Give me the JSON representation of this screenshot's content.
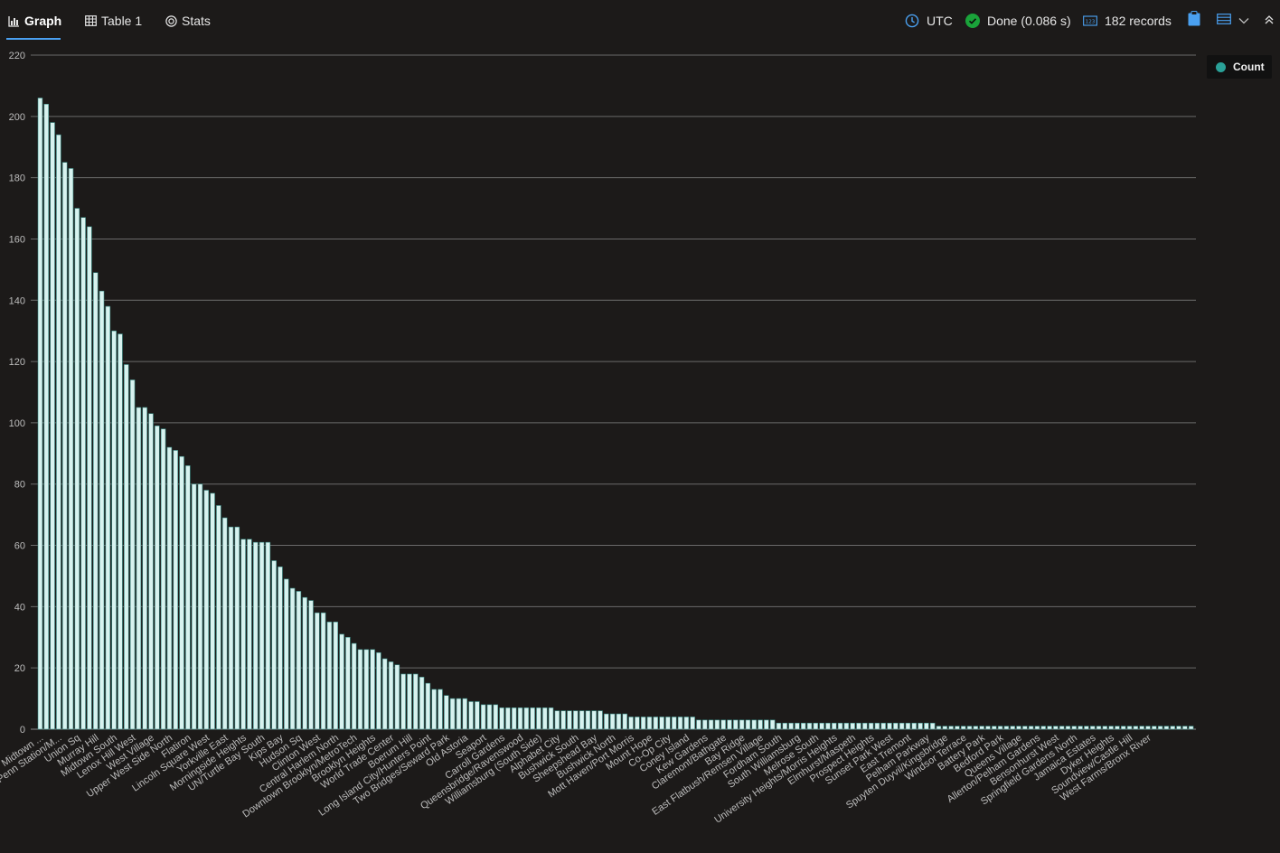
{
  "tabs": [
    {
      "label": "Graph",
      "icon": "bar-chart-icon",
      "active": true
    },
    {
      "label": "Table 1",
      "icon": "table-icon",
      "active": false
    },
    {
      "label": "Stats",
      "icon": "stats-icon",
      "active": false
    }
  ],
  "status": {
    "timezone": "UTC",
    "done": "Done (0.086 s)",
    "records": "182 records"
  },
  "colors": {
    "background": "#1c1a19",
    "bar_fill": "#d8f2ef",
    "bar_stroke": "#3a8c86",
    "legend_dot": "#2aa198",
    "accent": "#4aa0f0",
    "done_green": "#1aa33a"
  },
  "chart_data": {
    "type": "bar",
    "title": "",
    "xlabel": "",
    "ylabel": "",
    "ylim": [
      0,
      220
    ],
    "yticks": [
      0,
      20,
      40,
      60,
      80,
      100,
      120,
      140,
      160,
      180,
      200,
      220
    ],
    "grid": true,
    "legend_placement": "top-right",
    "series": [
      {
        "name": "Count"
      }
    ],
    "values": [
      206,
      204,
      198,
      194,
      185,
      183,
      170,
      167,
      164,
      149,
      143,
      138,
      130,
      129,
      119,
      114,
      105,
      105,
      103,
      99,
      98,
      92,
      91,
      89,
      86,
      80,
      80,
      78,
      77,
      73,
      69,
      66,
      66,
      62,
      62,
      61,
      61,
      61,
      55,
      53,
      49,
      46,
      45,
      43,
      42,
      38,
      38,
      35,
      35,
      31,
      30,
      28,
      26,
      26,
      26,
      25,
      23,
      22,
      21,
      18,
      18,
      18,
      17,
      15,
      13,
      13,
      11,
      10,
      10,
      10,
      9,
      9,
      8,
      8,
      8,
      7,
      7,
      7,
      7,
      7,
      7,
      7,
      7,
      7,
      6,
      6,
      6,
      6,
      6,
      6,
      6,
      6,
      5,
      5,
      5,
      5,
      4,
      4,
      4,
      4,
      4,
      4,
      4,
      4,
      4,
      4,
      4,
      3,
      3,
      3,
      3,
      3,
      3,
      3,
      3,
      3,
      3,
      3,
      3,
      3,
      2,
      2,
      2,
      2,
      2,
      2,
      2,
      2,
      2,
      2,
      2,
      2,
      2,
      2,
      2,
      2,
      2,
      2,
      2,
      2,
      2,
      2,
      2,
      2,
      2,
      2,
      1,
      1,
      1,
      1,
      1,
      1,
      1,
      1,
      1,
      1,
      1,
      1,
      1,
      1,
      1,
      1,
      1,
      1,
      1,
      1,
      1,
      1,
      1,
      1,
      1,
      1,
      1,
      1,
      1,
      1,
      1,
      1,
      1,
      1,
      1,
      1,
      1,
      1,
      1,
      1,
      1,
      1
    ],
    "category_labels": [
      "Midtown ...",
      "Penn Station/M...",
      "Union Sq",
      "Murray Hill",
      "Midtown South",
      "Lenox Hill West",
      "West Village",
      "Upper West Side North",
      "Flatiron",
      "Lincoln Square West",
      "Yorkville East",
      "Morningside Heights",
      "UN/Turtle Bay South",
      "Kips Bay",
      "Hudson Sq",
      "Clinton West",
      "Central Harlem North",
      "Downtown Brooklyn/MetroTech",
      "Brooklyn Heights",
      "World Trade Center",
      "Boerum Hill",
      "Long Island City/Hunters Point",
      "Two Bridges/Seward Park",
      "Old Astoria",
      "Seaport",
      "Carroll Gardens",
      "Queensbridge/Ravenswood",
      "Williamsburg (South Side)",
      "Alphabet City",
      "Bushwick South",
      "Sheepshead Bay",
      "Bushwick North",
      "Mott Haven/Port Morris",
      "Mount Hope",
      "Co-Op City",
      "Coney Island",
      "Kew Gardens",
      "Claremont/Bathgate",
      "Bay Ridge",
      "East Flatbush/Remsen Village",
      "Fordham South",
      "South Williamsburg",
      "Melrose South",
      "University Heights/Morris Heights",
      "Elmhurst/Maspeth",
      "Prospect Heights",
      "Sunset Park West",
      "East Tremont",
      "Pelham Parkway",
      "Spuyten Duyvil/Kingsbridge",
      "Windsor Terrace",
      "Battery Park",
      "Bedford Park",
      "Queens Village",
      "Allerton/Pelham Gardens",
      "Bensonhurst West",
      "Springfield Gardens North",
      "Jamaica Estates",
      "Dyker Heights",
      "Soundview/Castle Hill",
      "West Farms/Bronx River"
    ]
  }
}
